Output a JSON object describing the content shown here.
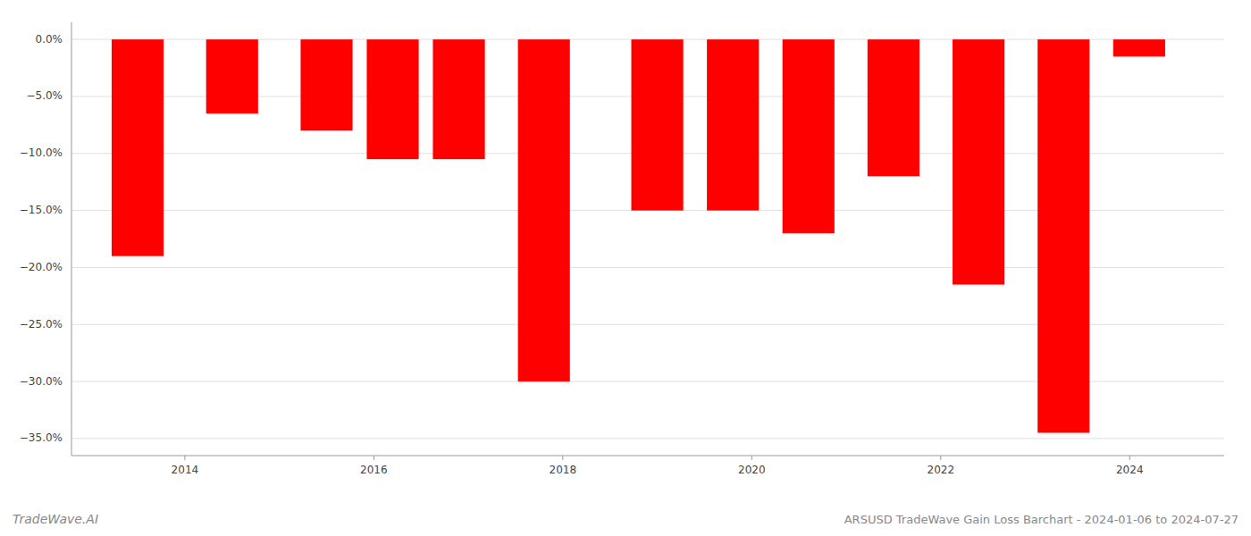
{
  "chart_data": {
    "type": "bar",
    "title": "ARSUSD TradeWave Gain Loss Barchart - 2024-01-06 to 2024-07-27",
    "annotations": [
      "TradeWave.AI"
    ],
    "x": [
      2013.5,
      2014.5,
      2015.5,
      2016.2,
      2016.9,
      2017.8,
      2019.0,
      2019.8,
      2020.6,
      2021.5,
      2022.4,
      2023.3,
      2024.1
    ],
    "values": [
      -19.0,
      -6.5,
      -8.0,
      -10.5,
      -10.5,
      -30.0,
      -15.0,
      -15.0,
      -17.0,
      -12.0,
      -21.5,
      -34.5,
      -1.5
    ],
    "color": "#ff0000",
    "xlim": [
      2012.8,
      2025.0
    ],
    "xticks": [
      2014,
      2016,
      2018,
      2020,
      2022,
      2024
    ],
    "ylim": [
      -36.5,
      1.5
    ],
    "yticks": [
      {
        "value": 0.0,
        "label": "0.0%"
      },
      {
        "value": -5.0,
        "label": "−5.0%"
      },
      {
        "value": -10.0,
        "label": "−10.0%"
      },
      {
        "value": -15.0,
        "label": "−15.0%"
      },
      {
        "value": -20.0,
        "label": "−20.0%"
      },
      {
        "value": -25.0,
        "label": "−25.0%"
      },
      {
        "value": -30.0,
        "label": "−30.0%"
      },
      {
        "value": -35.0,
        "label": "−35.0%"
      }
    ],
    "grid": true
  }
}
